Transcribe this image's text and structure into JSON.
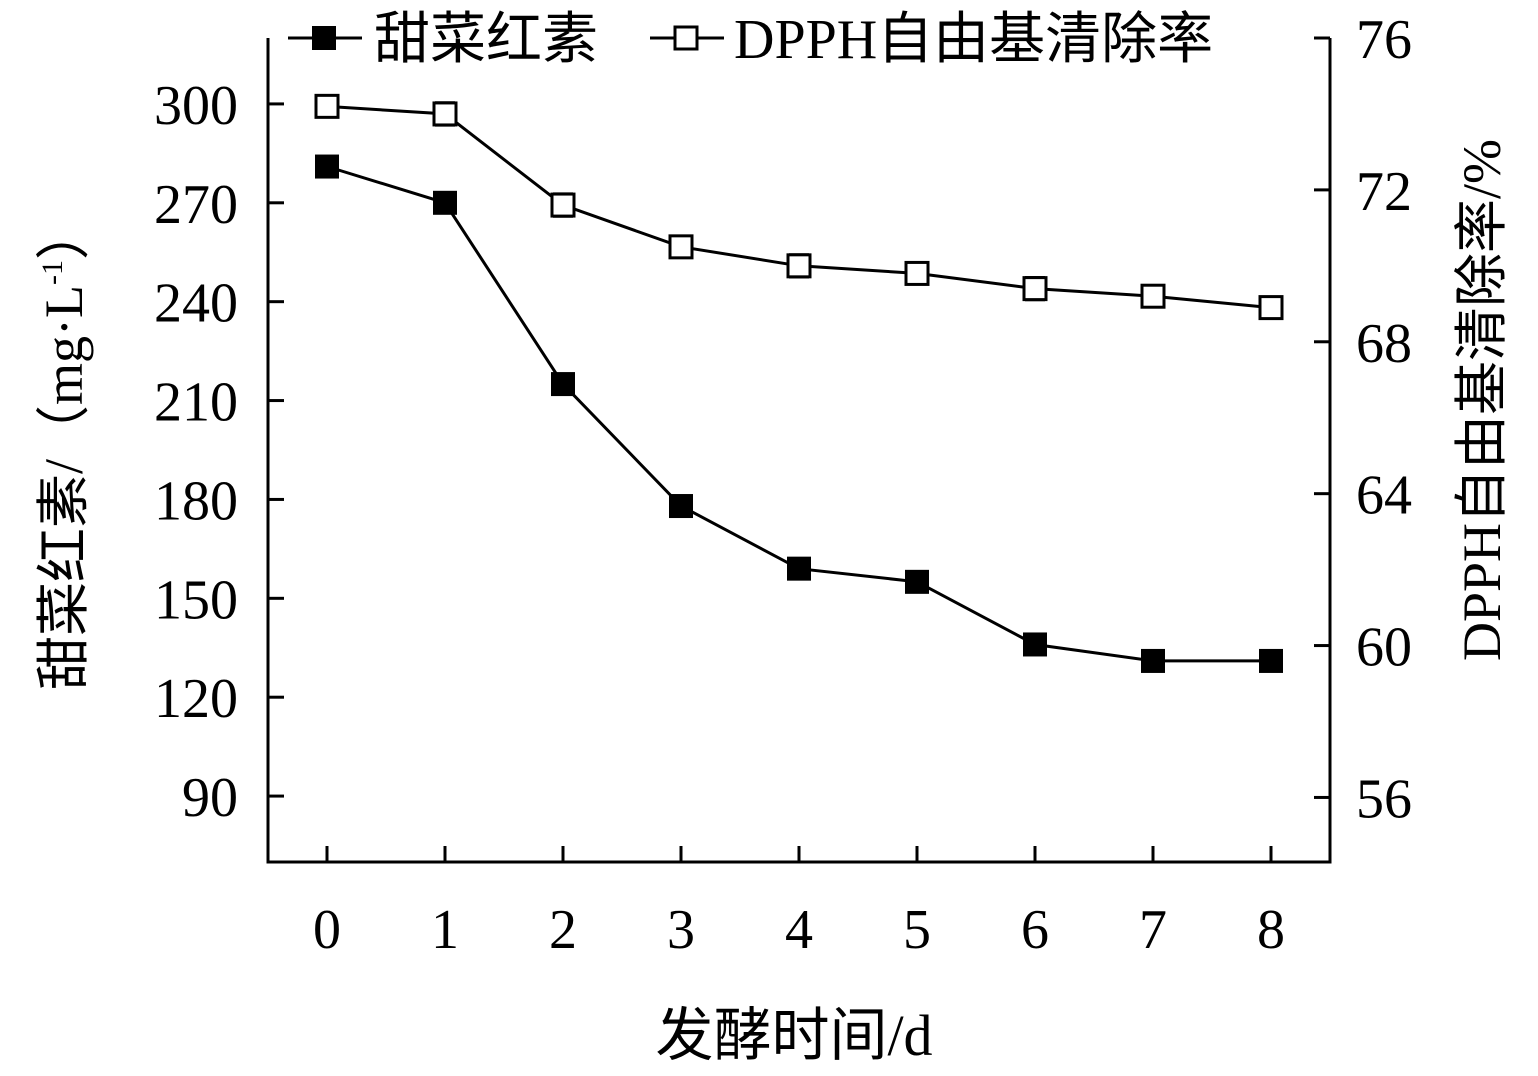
{
  "chart_data": {
    "type": "line",
    "xlabel": "发酵时间/d",
    "ylabel_left_main": "甜菜红素/（mg·L",
    "ylabel_left_sup": "-1",
    "ylabel_left_close": "）",
    "ylabel_right": "DPPH自由基清除率/%",
    "x": [
      0,
      1,
      2,
      3,
      4,
      5,
      6,
      7,
      8
    ],
    "x_ticks": [
      "0",
      "1",
      "2",
      "3",
      "4",
      "5",
      "6",
      "7",
      "8"
    ],
    "xlim": [
      -0.5,
      8.5
    ],
    "y_left_ticks": [
      "90",
      "120",
      "150",
      "180",
      "210",
      "240",
      "270",
      "300"
    ],
    "y_left_tick_values": [
      90,
      120,
      150,
      180,
      210,
      240,
      270,
      300
    ],
    "y_left_lim": [
      70,
      320
    ],
    "y_right_ticks": [
      "56",
      "60",
      "64",
      "68",
      "72",
      "76"
    ],
    "y_right_tick_values": [
      56,
      60,
      64,
      68,
      72,
      76
    ],
    "y_right_lim": [
      54.3,
      76
    ],
    "series": [
      {
        "name": "甜菜红素",
        "axis": "left",
        "marker": "filled-square",
        "values": [
          281,
          270,
          215,
          178,
          159,
          155,
          136,
          131,
          131
        ],
        "errors": [
          3,
          1.5,
          3,
          2.5,
          2,
          2.5,
          3,
          2.5,
          2.5
        ]
      },
      {
        "name": "DPPH自由基清除率",
        "axis": "right",
        "marker": "open-square",
        "values": [
          74.2,
          74.0,
          71.6,
          70.5,
          70.0,
          69.8,
          69.4,
          69.2,
          68.9
        ],
        "errors": [
          0.2,
          0.3,
          0.3,
          0.2,
          0.3,
          0.15,
          0.3,
          0.25,
          0.25
        ]
      }
    ],
    "legend_position": "top",
    "grid": false,
    "colors": {
      "line": "#000000",
      "background": "#ffffff"
    }
  }
}
